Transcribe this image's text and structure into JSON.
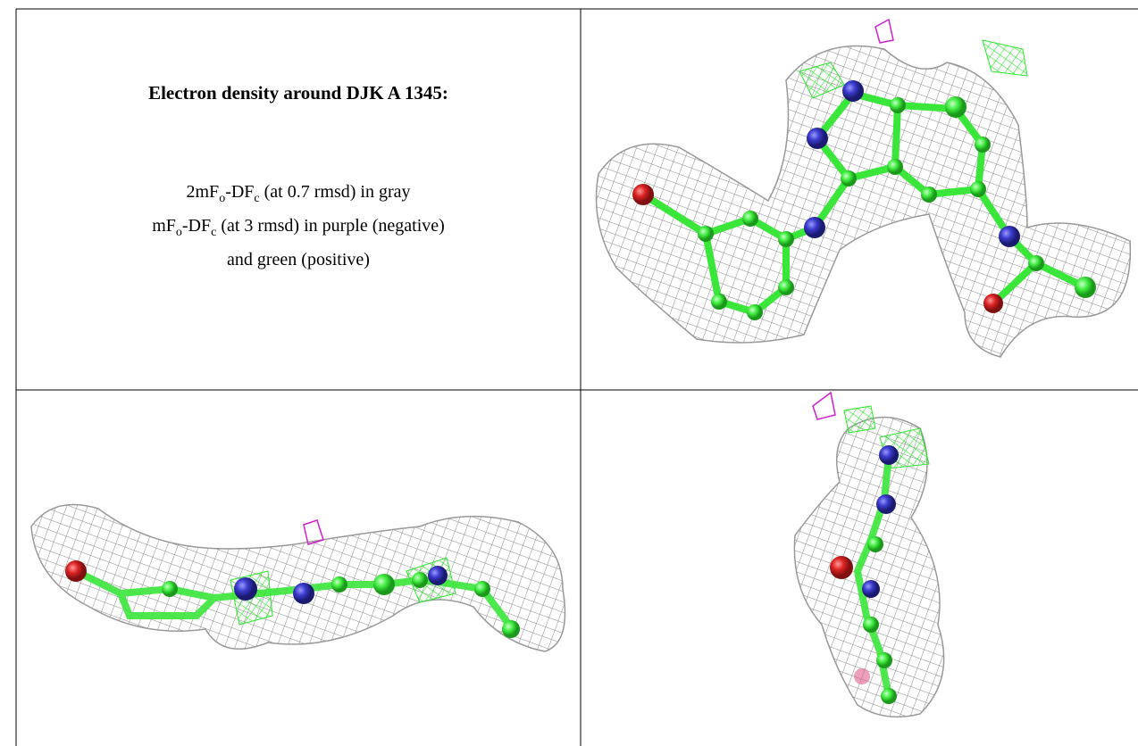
{
  "title": "Electron density around DJK A 1345:",
  "caption": {
    "lines": [
      {
        "parts": [
          {
            "text": "2mF"
          },
          {
            "sub": "o"
          },
          {
            "text": "-DF"
          },
          {
            "sub": "c"
          },
          {
            "text": " (at 0.7 rmsd) in gray"
          }
        ]
      },
      {
        "parts": [
          {
            "text": "mF"
          },
          {
            "sub": "o"
          },
          {
            "text": "-DF"
          },
          {
            "sub": "c"
          },
          {
            "text": " (at 3 rmsd) in purple (negative)"
          }
        ]
      },
      {
        "parts": [
          {
            "text": "and green (positive)"
          }
        ]
      }
    ]
  }
}
